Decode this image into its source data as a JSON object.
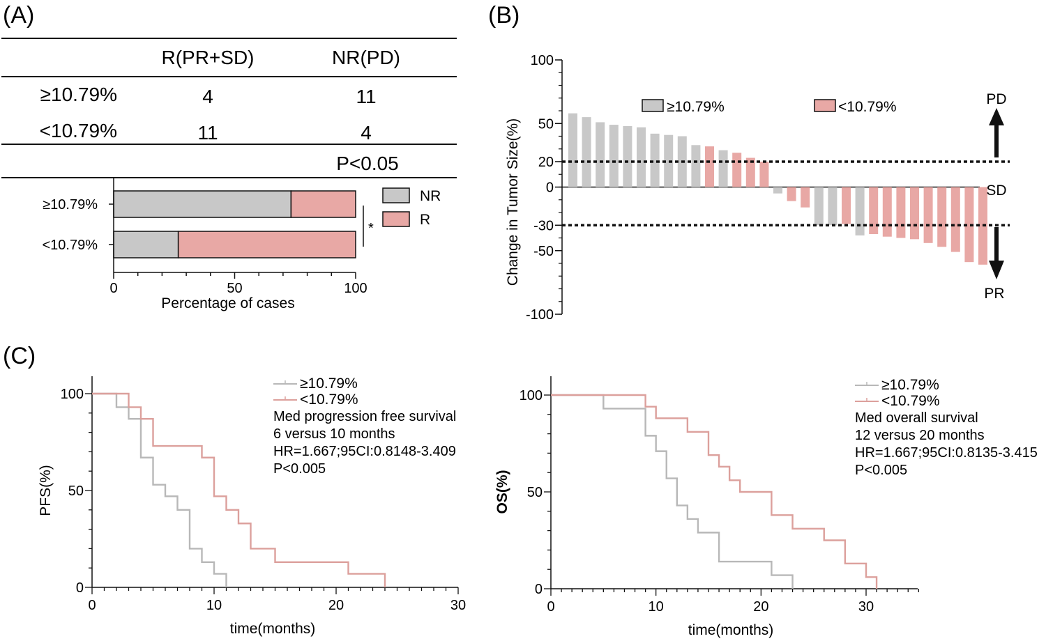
{
  "colors": {
    "gray": "#c8c8c8",
    "pink": "#e8a8a5",
    "gray_line": "#b8b8b8",
    "pink_line": "#dca09c",
    "black": "#111111"
  },
  "panel_a": {
    "label": "(A)",
    "table": {
      "col_headers": [
        "R(PR+SD)",
        "NR(PD)"
      ],
      "rows": [
        {
          "label": "≥10.79%",
          "r": "4",
          "nr": "11"
        },
        {
          "label": "<10.79%",
          "r": "11",
          "nr": "4"
        }
      ],
      "p_value": "P<0.05"
    }
  },
  "chart_data": [
    {
      "id": "A-bar",
      "type": "bar",
      "orientation": "horizontal-stacked",
      "categories": [
        "≥10.79%",
        "<10.79%"
      ],
      "series": [
        {
          "name": "NR",
          "color": "#c8c8c8",
          "values": [
            73.3,
            26.7
          ]
        },
        {
          "name": "R",
          "color": "#e8a8a5",
          "values": [
            26.7,
            73.3
          ]
        }
      ],
      "xlabel": "Percentage of cases",
      "xlim": [
        0,
        100
      ],
      "xticks": [
        0,
        50,
        100
      ],
      "significance": "*",
      "legend_position": "right"
    },
    {
      "id": "B-waterfall",
      "type": "bar",
      "label": "(B)",
      "ylabel": "Change in Tumor Size(%)",
      "ylim": [
        -100,
        100
      ],
      "yticks": [
        100,
        50,
        20,
        0,
        -30,
        -50,
        -100
      ],
      "legend": [
        "≥10.79%",
        "<10.79%"
      ],
      "legend_position": "top",
      "reference_lines": [
        20,
        -30
      ],
      "annotations": {
        "pd": "PD",
        "sd": "SD",
        "pr": "PR"
      },
      "values": [
        58,
        55,
        51,
        49,
        48,
        47,
        42,
        41,
        40,
        33,
        32,
        29,
        27,
        23,
        20,
        -5,
        -11,
        -16,
        -30,
        -30,
        -29,
        -38,
        -37,
        -39,
        -40,
        -41,
        -44,
        -47,
        -51,
        -59,
        -61
      ],
      "groups": [
        "g",
        "g",
        "g",
        "g",
        "g",
        "g",
        "g",
        "g",
        "g",
        "g",
        "p",
        "g",
        "p",
        "p",
        "p",
        "g",
        "p",
        "p",
        "g",
        "g",
        "p",
        "g",
        "p",
        "p",
        "p",
        "p",
        "p",
        "p",
        "p",
        "p",
        "p"
      ]
    },
    {
      "id": "C-pfs",
      "type": "line",
      "label": "(C)",
      "xlabel": "time(months)",
      "ylabel": "PFS(%)",
      "xlim": [
        0,
        30
      ],
      "ylim": [
        0,
        100
      ],
      "xticks": [
        0,
        10,
        20,
        30
      ],
      "yticks": [
        0,
        50,
        100
      ],
      "series": [
        {
          "name": "≥10.79%",
          "color": "#b8b8b8",
          "x": [
            0,
            2,
            3,
            4,
            5,
            6,
            7,
            8,
            9,
            10,
            11
          ],
          "y": [
            100,
            93,
            87,
            67,
            53,
            47,
            40,
            20,
            13,
            7,
            0
          ]
        },
        {
          "name": "<10.79%",
          "color": "#dca09c",
          "x": [
            0,
            3,
            4,
            5,
            9,
            10,
            11,
            12,
            13,
            15,
            21,
            24
          ],
          "y": [
            100,
            93,
            87,
            73,
            67,
            47,
            40,
            33,
            20,
            13,
            7,
            0
          ]
        }
      ],
      "annotations": [
        "Med progression free survival",
        "6 versus 10 months",
        "HR=1.667;95CI:0.8148-3.409",
        "P<0.005"
      ]
    },
    {
      "id": "C-os",
      "type": "line",
      "xlabel": "time(months)",
      "ylabel": "OS(%)",
      "xlim": [
        0,
        35
      ],
      "ylim": [
        0,
        100
      ],
      "xticks": [
        0,
        10,
        20,
        30
      ],
      "yticks": [
        0,
        50,
        100
      ],
      "series": [
        {
          "name": "≥10.79%",
          "color": "#b8b8b8",
          "x": [
            0,
            5,
            9,
            10,
            11,
            12,
            13,
            14,
            16,
            21,
            23
          ],
          "y": [
            100,
            93,
            79,
            71,
            57,
            43,
            36,
            29,
            14,
            7,
            0
          ]
        },
        {
          "name": "<10.79%",
          "color": "#dca09c",
          "x": [
            0,
            9,
            10,
            13,
            15,
            16,
            17,
            18,
            21,
            23,
            26,
            28,
            30,
            31
          ],
          "y": [
            100,
            94,
            88,
            81,
            69,
            63,
            56,
            50,
            38,
            31,
            25,
            13,
            6,
            0
          ]
        }
      ],
      "annotations": [
        "Med overall survival",
        "12 versus 20 months",
        "HR=1.667;95CI:0.8135-3.415",
        "P<0.005"
      ]
    }
  ]
}
